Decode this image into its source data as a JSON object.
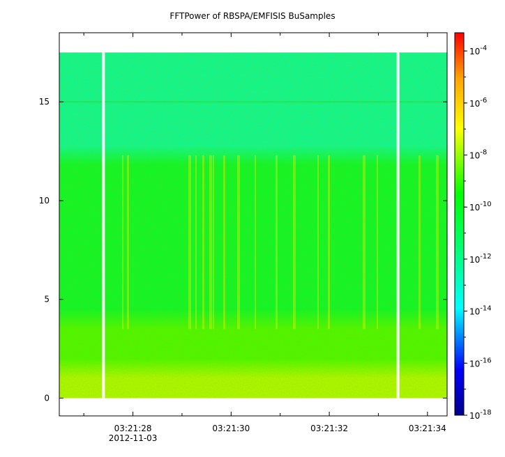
{
  "chart_data": {
    "type": "heatmap",
    "title": "FFTPower of RBSPA/EMFISIS  BuSamples",
    "xlabel": "",
    "ylabel": "",
    "x_ticks": [
      "03:21:28",
      "03:21:30",
      "03:21:32",
      "03:21:34"
    ],
    "x_date_label": "2012-11-03",
    "x_range_seconds": [
      "03:21:26.5",
      "03:21:34.4"
    ],
    "y_ticks": [
      0,
      5,
      10,
      15
    ],
    "ylim": [
      -0.9,
      18.5
    ],
    "y_data_extent": [
      0,
      17.5
    ],
    "colorbar": {
      "scale": "log",
      "range": [
        "1e-18",
        "1e-3.3"
      ],
      "tick_labels": [
        {
          "base": "10",
          "exp": "-4"
        },
        {
          "base": "10",
          "exp": "-6"
        },
        {
          "base": "10",
          "exp": "-8"
        },
        {
          "base": "10",
          "exp": "-10"
        },
        {
          "base": "10",
          "exp": "-12"
        },
        {
          "base": "10",
          "exp": "-14"
        },
        {
          "base": "10",
          "exp": "-16"
        },
        {
          "base": "10",
          "exp": "-18"
        }
      ],
      "colors": [
        "#00008b",
        "#0000ff",
        "#00ffff",
        "#00ff66",
        "#00ff00",
        "#ffff00",
        "#ffa500",
        "#ff0000"
      ]
    },
    "data_gaps_seconds": [
      "03:21:27.4",
      "03:21:33.4"
    ],
    "bands": [
      {
        "y_range": [
          12.3,
          17.5
        ],
        "log_power": -12.3
      },
      {
        "y_range": [
          4.0,
          12.3
        ],
        "log_power": -10.3
      },
      {
        "y_range": [
          1.5,
          4.0
        ],
        "log_power": -8.8
      },
      {
        "y_range": [
          0,
          1.5
        ],
        "log_power": -7.8
      }
    ]
  }
}
